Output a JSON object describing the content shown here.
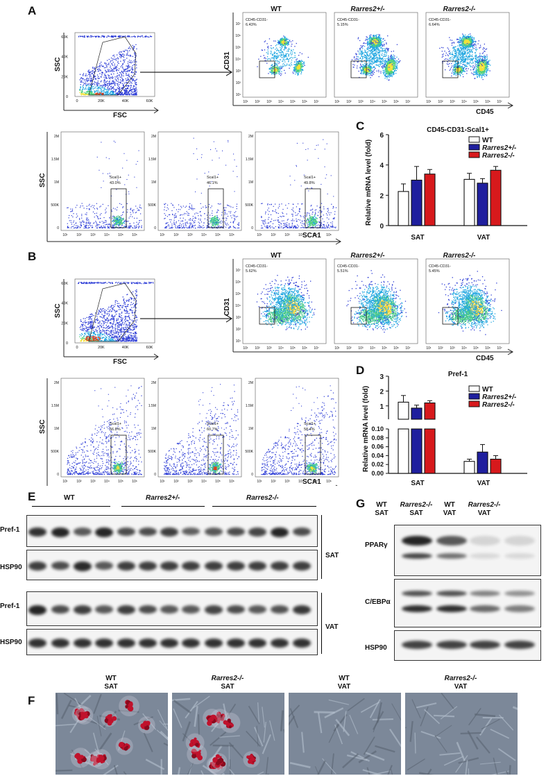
{
  "panel_letters": {
    "A": "A",
    "B": "B",
    "C": "C",
    "D": "D",
    "E": "E",
    "F": "F",
    "G": "G"
  },
  "flow": {
    "axis_ssc": "SSC",
    "axis_fsc": "FSC",
    "axis_cd31": "CD31",
    "axis_cd45": "CD45",
    "axis_sca1": "SCA1",
    "fsc_ticks": [
      "0",
      "20K",
      "40K",
      "60K"
    ],
    "ssc_ticks": [
      "0",
      "20K",
      "40K",
      "60K"
    ],
    "sca_ssc_ticks": [
      "0",
      "500K",
      "1M",
      "1.5M",
      "2M"
    ],
    "groups": [
      "WT",
      "Rarres2+/-",
      "Rarres2-/-"
    ],
    "gate_label": "CD45-CD31-",
    "sca_gate_label": "Scal1+",
    "A_cd_pct": [
      "6.43%",
      "5.15%",
      "6.64%"
    ],
    "A_sca_pct": [
      "43.0%",
      "46.1%",
      "49.8%"
    ],
    "B_cd_pct": [
      "5.62%",
      "5.51%",
      "5.45%"
    ],
    "B_sca_pct": [
      "56.8%",
      "60.7%",
      "58.4%"
    ],
    "log_ticks": [
      "10¹",
      "10²",
      "10³",
      "10⁴",
      "10⁵",
      "10⁶",
      "10⁷"
    ]
  },
  "chart_data": [
    {
      "type": "bar",
      "title": "CD45-CD31-Scal1+",
      "ylabel": "Relative mRNA level (fold)",
      "categories": [
        "SAT",
        "VAT"
      ],
      "ylim": [
        0,
        6
      ],
      "yticks": [
        "0",
        "2",
        "4",
        "6"
      ],
      "series": [
        {
          "name": "WT",
          "values": [
            2.25,
            3.05
          ],
          "errors": [
            0.5,
            0.4
          ]
        },
        {
          "name": "Rarres2+/-",
          "values": [
            3.0,
            2.8
          ],
          "errors": [
            0.9,
            0.3
          ]
        },
        {
          "name": "Rarres2-/-",
          "values": [
            3.4,
            3.65
          ],
          "errors": [
            0.3,
            0.25
          ]
        }
      ]
    },
    {
      "type": "bar",
      "title": "Pref-1",
      "ylabel": "Relative mRNA level (fold)",
      "categories": [
        "SAT",
        "VAT"
      ],
      "ylim_upper": [
        0.1,
        3
      ],
      "ylim_lower": [
        0,
        0.1
      ],
      "yticks_upper": [
        "1",
        "2",
        "3"
      ],
      "yticks_lower": [
        "0.00",
        "0.02",
        "0.04",
        "0.06",
        "0.08",
        "0.10"
      ],
      "series": [
        {
          "name": "WT",
          "values": [
            1.25,
            0.027
          ],
          "errors": [
            0.45,
            0.005
          ]
        },
        {
          "name": "Rarres2+/-",
          "values": [
            0.85,
            0.048
          ],
          "errors": [
            0.2,
            0.017
          ]
        },
        {
          "name": "Rarres2-/-",
          "values": [
            1.2,
            0.032
          ],
          "errors": [
            0.15,
            0.008
          ]
        }
      ]
    }
  ],
  "colors": {
    "wt": "#ffffff",
    "het": "#1f1f9e",
    "ko": "#d7191c"
  },
  "blotE": {
    "groups": [
      "WT",
      "Rarres2+/-",
      "Rarres2-/-"
    ],
    "rows": [
      "Pref-1",
      "HSP90",
      "Pref-1",
      "HSP90"
    ],
    "tissues": [
      "SAT",
      "VAT"
    ]
  },
  "blotG": {
    "cols": [
      [
        "WT",
        "SAT"
      ],
      [
        "Rarres2-/-",
        "SAT"
      ],
      [
        "WT",
        "VAT"
      ],
      [
        "Rarres2-/-",
        "VAT"
      ]
    ],
    "rows": [
      "PPARγ",
      "C/EBPα",
      "HSP90"
    ]
  },
  "photosF": [
    [
      "WT",
      "SAT"
    ],
    [
      "Rarres2-/-",
      "SAT"
    ],
    [
      "WT",
      "VAT"
    ],
    [
      "Rarres2-/-",
      "VAT"
    ]
  ]
}
